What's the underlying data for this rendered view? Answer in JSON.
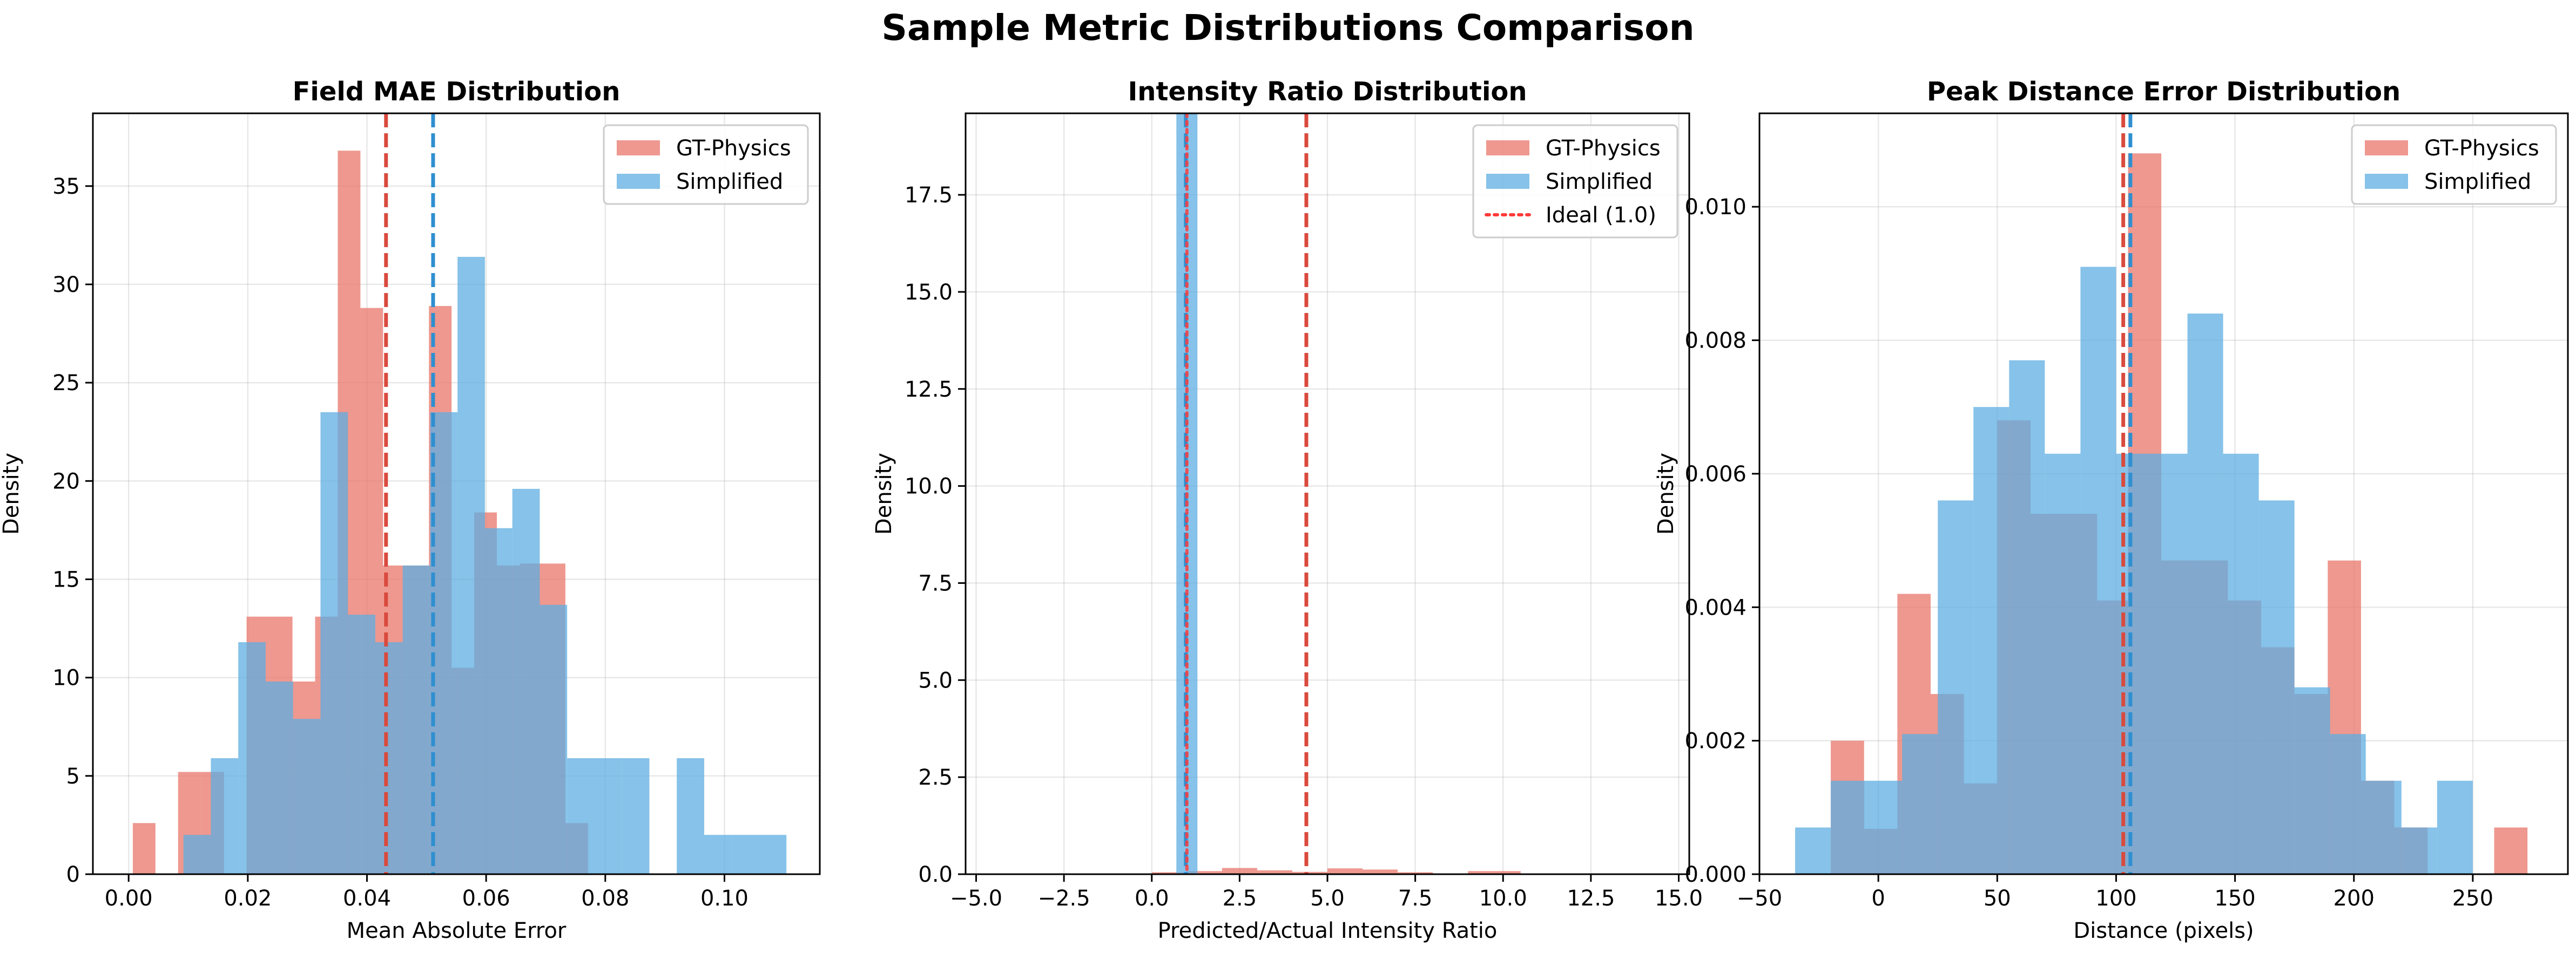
{
  "suptitle": "Sample Metric Distributions Comparison",
  "colors": {
    "gt": "#e8756a",
    "simp": "#5dade2",
    "gt_line": "#d94a3d",
    "simp_line": "#2f8fd0",
    "ideal": "#ff3b3b"
  },
  "chart_data": [
    {
      "type": "histogram",
      "title": "Field MAE Distribution",
      "xlabel": "Mean Absolute Error",
      "ylabel": "Density",
      "xlim": [
        -0.006,
        0.116
      ],
      "ylim": [
        0,
        38.7
      ],
      "xticks": [
        0.0,
        0.02,
        0.04,
        0.06,
        0.08,
        0.1
      ],
      "xtick_labels": [
        "0.00",
        "0.02",
        "0.04",
        "0.06",
        "0.08",
        "0.10"
      ],
      "yticks": [
        0,
        5,
        10,
        15,
        20,
        25,
        30,
        35
      ],
      "ytick_labels": [
        "0",
        "5",
        "10",
        "15",
        "20",
        "25",
        "30",
        "35"
      ],
      "grid": true,
      "legend": "top-right",
      "series": [
        {
          "name": "GT-Physics",
          "color_key": "gt",
          "bins": [
            [
              0.0007,
              0.0045,
              2.6
            ],
            [
              0.0083,
              0.0122,
              5.2
            ],
            [
              0.0122,
              0.016,
              5.2
            ],
            [
              0.0198,
              0.0236,
              13.1
            ],
            [
              0.0236,
              0.0275,
              13.1
            ],
            [
              0.0275,
              0.0313,
              9.8
            ],
            [
              0.0313,
              0.0351,
              13.1
            ],
            [
              0.0351,
              0.0389,
              36.8
            ],
            [
              0.0389,
              0.0427,
              28.8
            ],
            [
              0.0427,
              0.0466,
              15.7
            ],
            [
              0.0466,
              0.0504,
              15.7
            ],
            [
              0.0504,
              0.0542,
              28.9
            ],
            [
              0.0542,
              0.058,
              10.5
            ],
            [
              0.058,
              0.0618,
              18.4
            ],
            [
              0.0618,
              0.0657,
              15.7
            ],
            [
              0.0657,
              0.0695,
              15.8
            ],
            [
              0.0695,
              0.0733,
              15.8
            ],
            [
              0.0733,
              0.0771,
              2.6
            ]
          ]
        },
        {
          "name": "Simplified",
          "color_key": "simp",
          "bins": [
            [
              0.0092,
              0.0138,
              2.0
            ],
            [
              0.0138,
              0.0184,
              5.9
            ],
            [
              0.0184,
              0.023,
              11.8
            ],
            [
              0.023,
              0.0276,
              9.8
            ],
            [
              0.0276,
              0.0322,
              7.9
            ],
            [
              0.0322,
              0.0368,
              23.5
            ],
            [
              0.0368,
              0.0414,
              13.2
            ],
            [
              0.0414,
              0.046,
              11.8
            ],
            [
              0.046,
              0.0506,
              15.7
            ],
            [
              0.0506,
              0.0552,
              23.5
            ],
            [
              0.0552,
              0.0598,
              31.4
            ],
            [
              0.0598,
              0.0644,
              17.6
            ],
            [
              0.0644,
              0.069,
              19.6
            ],
            [
              0.069,
              0.0736,
              13.7
            ],
            [
              0.0736,
              0.0782,
              5.9
            ],
            [
              0.0782,
              0.0828,
              5.9
            ],
            [
              0.0828,
              0.0874,
              5.9
            ],
            [
              0.0874,
              0.092,
              0
            ],
            [
              0.092,
              0.0966,
              5.9
            ],
            [
              0.0966,
              0.1012,
              2.0
            ],
            [
              0.1012,
              0.1058,
              2.0
            ],
            [
              0.1058,
              0.1104,
              2.0
            ]
          ]
        }
      ],
      "mean_lines": [
        {
          "x": 0.0432,
          "color_key": "gt_line"
        },
        {
          "x": 0.0511,
          "color_key": "simp_line"
        }
      ]
    },
    {
      "type": "histogram",
      "title": "Intensity Ratio Distribution",
      "xlabel": "Predicted/Actual Intensity Ratio",
      "ylabel": "Density",
      "xlim": [
        -5.3,
        15.3
      ],
      "ylim": [
        0,
        19.6
      ],
      "xticks": [
        -5.0,
        -2.5,
        0.0,
        2.5,
        5.0,
        7.5,
        10.0,
        12.5,
        15.0
      ],
      "xtick_labels": [
        "−5.0",
        "−2.5",
        "0.0",
        "2.5",
        "5.0",
        "7.5",
        "10.0",
        "12.5",
        "15.0"
      ],
      "yticks": [
        0,
        2.5,
        5.0,
        7.5,
        10.0,
        12.5,
        15.0,
        17.5
      ],
      "ytick_labels": [
        "0.0",
        "2.5",
        "5.0",
        "7.5",
        "10.0",
        "12.5",
        "15.0",
        "17.5"
      ],
      "grid": true,
      "legend": "top-right",
      "series": [
        {
          "name": "GT-Physics",
          "color_key": "gt",
          "bins": [
            [
              -1.0,
              0.0,
              0.02
            ],
            [
              0.0,
              1.0,
              0.05
            ],
            [
              1.0,
              2.0,
              0.08
            ],
            [
              2.0,
              3.0,
              0.16
            ],
            [
              3.0,
              4.0,
              0.1
            ],
            [
              4.0,
              5.0,
              0.06
            ],
            [
              5.0,
              6.0,
              0.15
            ],
            [
              6.0,
              7.0,
              0.12
            ],
            [
              7.0,
              8.0,
              0.05
            ],
            [
              8.0,
              9.0,
              0.02
            ],
            [
              9.0,
              10.5,
              0.08
            ]
          ]
        },
        {
          "name": "Simplified",
          "color_key": "simp",
          "bins": [
            [
              0.7,
              1.3,
              19.8
            ]
          ]
        }
      ],
      "mean_lines": [
        {
          "x": 0.97,
          "color_key": "simp_line"
        },
        {
          "x": 4.4,
          "color_key": "gt_line"
        }
      ],
      "ideal_line": {
        "name": "Ideal (1.0)",
        "x": 1.0,
        "color_key": "ideal"
      }
    },
    {
      "type": "histogram",
      "title": "Peak Distance Error Distribution",
      "xlabel": "Distance (pixels)",
      "ylabel": "Density",
      "xlim": [
        -50,
        290
      ],
      "ylim": [
        0,
        0.0114
      ],
      "xticks": [
        -50,
        0,
        50,
        100,
        150,
        200,
        250
      ],
      "xtick_labels": [
        "−50",
        "0",
        "50",
        "100",
        "150",
        "200",
        "250"
      ],
      "yticks": [
        0,
        0.002,
        0.004,
        0.006,
        0.008,
        0.01
      ],
      "ytick_labels": [
        "0.000",
        "0.002",
        "0.004",
        "0.006",
        "0.008",
        "0.010"
      ],
      "grid": true,
      "legend": "top-right",
      "series": [
        {
          "name": "GT-Physics",
          "color_key": "gt",
          "bins": [
            [
              -20,
              -6,
              0.002
            ],
            [
              -6,
              8,
              0.00068
            ],
            [
              8,
              22,
              0.0042
            ],
            [
              22,
              36,
              0.0027
            ],
            [
              36,
              50,
              0.00136
            ],
            [
              50,
              64,
              0.0068
            ],
            [
              64,
              78,
              0.0054
            ],
            [
              78,
              92,
              0.0054
            ],
            [
              92,
              105,
              0.0041
            ],
            [
              105,
              119,
              0.0108
            ],
            [
              119,
              133,
              0.0047
            ],
            [
              133,
              147,
              0.0047
            ],
            [
              147,
              161,
              0.0041
            ],
            [
              161,
              175,
              0.0034
            ],
            [
              175,
              189,
              0.0027
            ],
            [
              189,
              203,
              0.0047
            ],
            [
              203,
              217,
              0.0014
            ],
            [
              217,
              231,
              0.0007
            ],
            [
              231,
              245,
              0
            ],
            [
              245,
              259,
              0
            ],
            [
              259,
              273,
              0.0007
            ]
          ]
        },
        {
          "name": "Simplified",
          "color_key": "simp",
          "bins": [
            [
              -35,
              -20,
              0.0007
            ],
            [
              -20,
              -5,
              0.0014
            ],
            [
              -5,
              10,
              0.0014
            ],
            [
              10,
              25,
              0.0021
            ],
            [
              25,
              40,
              0.0056
            ],
            [
              40,
              55,
              0.007
            ],
            [
              55,
              70,
              0.0077
            ],
            [
              70,
              85,
              0.0063
            ],
            [
              85,
              100,
              0.0091
            ],
            [
              100,
              115,
              0.0063
            ],
            [
              115,
              130,
              0.0063
            ],
            [
              130,
              145,
              0.0084
            ],
            [
              145,
              160,
              0.0063
            ],
            [
              160,
              175,
              0.0056
            ],
            [
              175,
              190,
              0.0028
            ],
            [
              190,
              205,
              0.0021
            ],
            [
              205,
              220,
              0.0014
            ],
            [
              220,
              235,
              0.0007
            ],
            [
              235,
              250,
              0.0014
            ]
          ]
        }
      ],
      "mean_lines": [
        {
          "x": 103,
          "color_key": "gt_line"
        },
        {
          "x": 106,
          "color_key": "simp_line"
        }
      ]
    }
  ]
}
